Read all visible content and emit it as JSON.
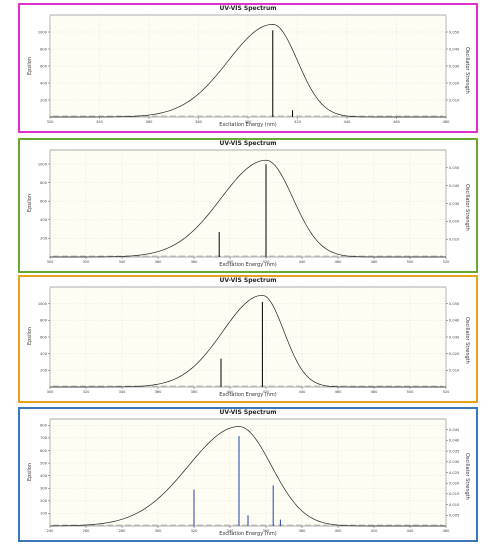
{
  "panel_colors": [
    "#dd33cc",
    "#66aa33",
    "#e8a020",
    "#3a78b8"
  ],
  "chart_data": [
    {
      "type": "line",
      "title": "UV-VIS Spectrum",
      "xlabel": "Excitation Energy (nm)",
      "ylabel": "Epsilon",
      "y2label": "Oscillator Strength",
      "xlim": [
        320,
        480
      ],
      "ylim": [
        0,
        1200
      ],
      "y2lim": [
        0,
        0.06
      ],
      "grid": true,
      "xticks": [
        320,
        340,
        360,
        380,
        400,
        420,
        440,
        460,
        480
      ],
      "yticks": [
        200,
        400,
        600,
        800,
        1000
      ],
      "y2ticks": [
        0.01,
        0.02,
        0.03,
        0.04,
        0.05
      ],
      "curve": {
        "center": 410,
        "width_left": 18,
        "width_right": 10,
        "peak": 1090
      },
      "sticks": [
        {
          "x": 410,
          "y": 0.051
        },
        {
          "x": 418,
          "y": 0.004
        }
      ],
      "stick_color": "#000000"
    },
    {
      "type": "line",
      "title": "UV-VIS Spectrum",
      "xlabel": "Excitation Energy (nm)",
      "ylabel": "Epsilon",
      "y2label": "Oscillator Strength",
      "xlim": [
        300,
        520
      ],
      "ylim": [
        0,
        1150
      ],
      "y2lim": [
        0,
        0.06
      ],
      "grid": true,
      "xticks": [
        300,
        320,
        340,
        360,
        380,
        400,
        420,
        440,
        460,
        480,
        500,
        520
      ],
      "yticks": [
        200,
        400,
        600,
        800,
        1000
      ],
      "y2ticks": [
        0.01,
        0.02,
        0.03,
        0.04,
        0.05
      ],
      "curve": {
        "center": 420,
        "width_left": 25,
        "width_right": 15,
        "peak": 1040
      },
      "sticks": [
        {
          "x": 420,
          "y": 0.052
        },
        {
          "x": 394,
          "y": 0.014
        }
      ],
      "stick_color": "#000000"
    },
    {
      "type": "line",
      "title": "UV-VIS Spectrum",
      "xlabel": "Excitation Energy (nm)",
      "ylabel": "Epsilon",
      "y2label": "Oscillator Strength",
      "xlim": [
        300,
        520
      ],
      "ylim": [
        0,
        1200
      ],
      "y2lim": [
        0,
        0.06
      ],
      "grid": true,
      "xticks": [
        300,
        320,
        340,
        360,
        380,
        400,
        420,
        440,
        460,
        480,
        500,
        520
      ],
      "yticks": [
        200,
        400,
        600,
        800,
        1000
      ],
      "y2ticks": [
        0.01,
        0.02,
        0.03,
        0.04,
        0.05
      ],
      "curve": {
        "center": 418,
        "width_left": 22,
        "width_right": 12,
        "peak": 1100
      },
      "sticks": [
        {
          "x": 418,
          "y": 0.051
        },
        {
          "x": 395,
          "y": 0.017
        }
      ],
      "stick_color": "#000000"
    },
    {
      "type": "line",
      "title": "UV-VIS Spectrum",
      "xlabel": "Excitation Energy (nm)",
      "ylabel": "Epsilon",
      "y2label": "Oscillator Strength",
      "xlim": [
        240,
        460
      ],
      "ylim": [
        0,
        850
      ],
      "y2lim": [
        0,
        0.05
      ],
      "grid": true,
      "xticks": [
        240,
        260,
        280,
        300,
        320,
        340,
        360,
        380,
        400,
        420,
        440,
        460
      ],
      "yticks": [
        100,
        200,
        300,
        400,
        500,
        600,
        700,
        800
      ],
      "y2ticks": [
        0.005,
        0.01,
        0.015,
        0.02,
        0.025,
        0.03,
        0.035,
        0.04,
        0.045
      ],
      "curve": {
        "center": 345,
        "width_left": 28,
        "width_right": 18,
        "peak": 790
      },
      "sticks": [
        {
          "x": 345,
          "y": 0.042
        },
        {
          "x": 320,
          "y": 0.017
        },
        {
          "x": 350,
          "y": 0.005
        },
        {
          "x": 364,
          "y": 0.019
        },
        {
          "x": 368,
          "y": 0.003
        }
      ],
      "stick_color": "#2244aa"
    }
  ]
}
